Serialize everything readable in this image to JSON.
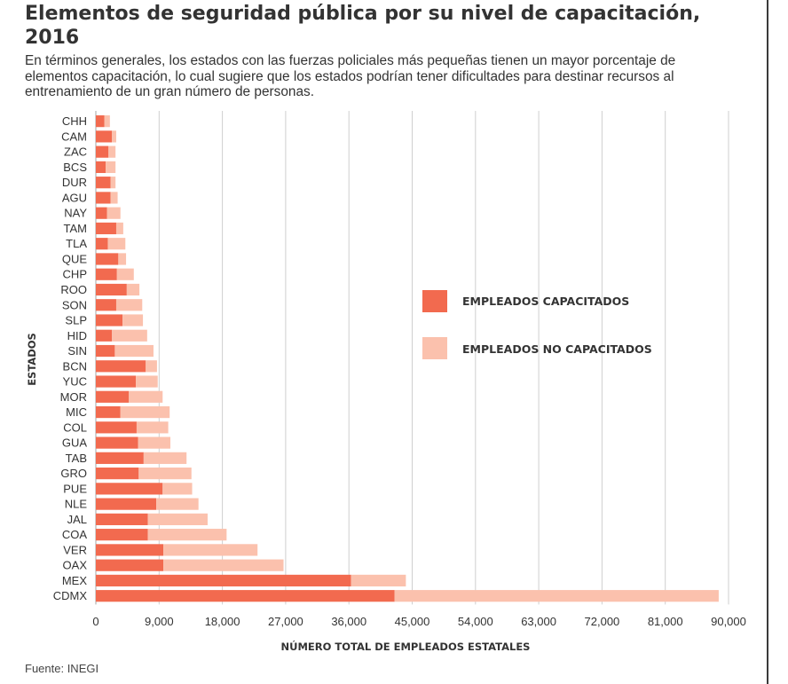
{
  "title": "Elementos de seguridad pública por su nivel de capacitación, 2016",
  "subtitle": "En términos generales, los estados con las fuerzas policiales más pequeñas tienen un mayor porcentaje de elementos capacitación, lo cual sugiere que los estados podrían tener dificultades para destinar recursos al entrenamiento de un gran número de personas.",
  "source": "Fuente: INEGI",
  "colors": {
    "capacitados": "#f26a4f",
    "no_capacitados": "#fbc1ad",
    "grid": "#cfcfcf",
    "text": "#333333"
  },
  "chart_data": {
    "type": "bar",
    "orientation": "horizontal",
    "stacked": true,
    "categories": [
      "CHH",
      "CAM",
      "ZAC",
      "BCS",
      "DUR",
      "AGU",
      "NAY",
      "TAM",
      "TLA",
      "QUE",
      "CHP",
      "ROO",
      "SON",
      "SLP",
      "HID",
      "SIN",
      "BCN",
      "YUC",
      "MOR",
      "MIC",
      "COL",
      "GUA",
      "TAB",
      "GRO",
      "PUE",
      "NLE",
      "JAL",
      "COA",
      "VER",
      "OAX",
      "MEX",
      "CDMX"
    ],
    "series": [
      {
        "name": "EMPLEADOS CAPACITADOS",
        "color": "#f26a4f",
        "values": [
          1200,
          2300,
          1800,
          1400,
          2100,
          2100,
          1600,
          2900,
          1700,
          3200,
          3000,
          4400,
          2900,
          3800,
          2300,
          2700,
          7100,
          5700,
          4700,
          3500,
          5800,
          6000,
          6800,
          6100,
          9500,
          8600,
          7400,
          7400,
          9600,
          9600,
          36300,
          42500
        ]
      },
      {
        "name": "EMPLEADOS NO CAPACITADOS",
        "color": "#fbc1ad",
        "values": [
          800,
          600,
          1000,
          1400,
          700,
          1000,
          1900,
          1000,
          2500,
          1100,
          2400,
          1800,
          3700,
          2900,
          5000,
          5500,
          1600,
          3100,
          4800,
          7000,
          4500,
          4600,
          6100,
          7500,
          4200,
          6000,
          8500,
          11200,
          13400,
          17100,
          7800,
          46100
        ]
      }
    ],
    "xlabel": "NÚMERO TOTAL DE EMPLEADOS ESTATALES",
    "ylabel": "ESTADOS",
    "xlim": [
      0,
      90000
    ],
    "xticks": [
      0,
      9000,
      18000,
      27000,
      36000,
      45000,
      54000,
      63000,
      72000,
      81000,
      90000
    ],
    "xtick_labels": [
      "0",
      "9,000",
      "18,000",
      "27,000",
      "36,000",
      "45,000",
      "54,000",
      "63,000",
      "72,000",
      "81,000",
      "90,000"
    ],
    "grid": "vertical",
    "legend_position": "right"
  }
}
